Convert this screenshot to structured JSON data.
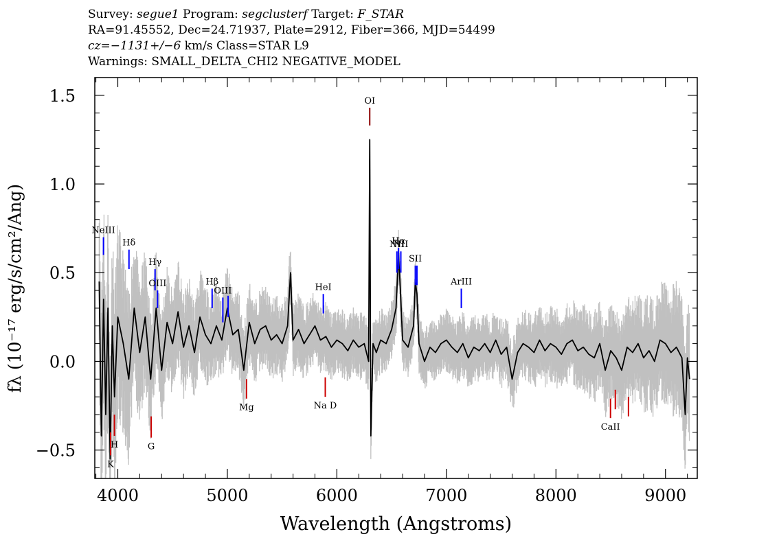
{
  "header": {
    "line1": {
      "survey_label": "Survey: ",
      "survey": "segue1",
      "program_label": " Program: ",
      "program": "segclusterf",
      "target_label": " Target: ",
      "target": "F_STAR"
    },
    "line2": "RA=91.45552, Dec=24.71937, Plate=2912, Fiber=366, MJD=54499",
    "line3": {
      "cz": "cz=−1131+/−6",
      "rest": " km/s Class=STAR L9"
    },
    "line4": "Warnings: SMALL_DELTA_CHI2 NEGATIVE_MODEL"
  },
  "chart_data": {
    "type": "line",
    "xlabel": "Wavelength (Angstroms)",
    "ylabel": "fλ (10⁻¹⁷ erg/s/cm²/Ang)",
    "xlim": [
      3790,
      9290
    ],
    "ylim": [
      -0.66,
      1.6
    ],
    "x_ticks": [
      4000,
      5000,
      6000,
      7000,
      8000,
      9000
    ],
    "x_tick_labels": [
      "4000",
      "5000",
      "6000",
      "7000",
      "8000",
      "9000"
    ],
    "y_ticks": [
      -0.5,
      0.0,
      0.5,
      1.0,
      1.5
    ],
    "y_tick_labels": [
      "−0.5",
      "0.0",
      "0.5",
      "1.0",
      "1.5"
    ],
    "grid": false,
    "colors": {
      "flux": "#000000",
      "error": "#c0c0c0",
      "emission": "#0000ff",
      "absorption": "#cc0000",
      "sky": "#8b0000"
    },
    "series": [
      {
        "role": "flux",
        "x": [
          3830,
          3850,
          3870,
          3890,
          3910,
          3930,
          3950,
          3970,
          4000,
          4050,
          4100,
          4150,
          4200,
          4250,
          4300,
          4350,
          4400,
          4450,
          4500,
          4550,
          4600,
          4650,
          4700,
          4750,
          4800,
          4850,
          4900,
          4950,
          5000,
          5050,
          5100,
          5150,
          5200,
          5250,
          5300,
          5350,
          5400,
          5450,
          5500,
          5550,
          5577,
          5600,
          5650,
          5700,
          5750,
          5800,
          5850,
          5900,
          5950,
          6000,
          6050,
          6100,
          6150,
          6200,
          6250,
          6290,
          6300,
          6310,
          6330,
          6360,
          6400,
          6450,
          6500,
          6540,
          6563,
          6580,
          6600,
          6650,
          6700,
          6716,
          6731,
          6750,
          6800,
          6850,
          6900,
          6950,
          7000,
          7050,
          7100,
          7150,
          7200,
          7250,
          7300,
          7350,
          7400,
          7450,
          7500,
          7550,
          7600,
          7650,
          7700,
          7750,
          7800,
          7850,
          7900,
          7950,
          8000,
          8050,
          8100,
          8150,
          8200,
          8250,
          8300,
          8350,
          8400,
          8450,
          8500,
          8550,
          8600,
          8650,
          8700,
          8750,
          8800,
          8850,
          8900,
          8950,
          9000,
          9050,
          9100,
          9150,
          9180,
          9200,
          9220
        ],
        "y": [
          0.45,
          -0.42,
          0.35,
          -0.3,
          0.3,
          -0.55,
          0.2,
          -0.2,
          0.25,
          0.1,
          -0.1,
          0.3,
          0.05,
          0.25,
          -0.1,
          0.3,
          -0.05,
          0.22,
          0.1,
          0.28,
          0.08,
          0.2,
          0.05,
          0.25,
          0.15,
          0.1,
          0.2,
          0.12,
          0.3,
          0.15,
          0.18,
          -0.05,
          0.22,
          0.1,
          0.18,
          0.2,
          0.12,
          0.15,
          0.1,
          0.2,
          0.5,
          0.12,
          0.18,
          0.1,
          0.15,
          0.2,
          0.12,
          0.14,
          0.08,
          0.12,
          0.1,
          0.06,
          0.12,
          0.08,
          0.1,
          0.0,
          1.25,
          -0.42,
          0.1,
          0.05,
          0.12,
          0.1,
          0.18,
          0.3,
          0.6,
          0.4,
          0.12,
          0.08,
          0.2,
          0.45,
          0.38,
          0.1,
          0.0,
          0.08,
          0.05,
          0.1,
          0.12,
          0.08,
          0.05,
          0.1,
          0.02,
          0.08,
          0.06,
          0.1,
          0.05,
          0.12,
          0.04,
          0.08,
          -0.1,
          0.05,
          0.1,
          0.08,
          0.05,
          0.12,
          0.06,
          0.1,
          0.08,
          0.04,
          0.1,
          0.12,
          0.06,
          0.08,
          0.04,
          0.02,
          0.1,
          -0.05,
          0.06,
          0.02,
          -0.05,
          0.08,
          0.05,
          0.1,
          0.02,
          0.06,
          0.0,
          0.12,
          0.1,
          0.05,
          0.08,
          0.02,
          -0.3,
          0.02,
          -0.1
        ]
      },
      {
        "role": "error",
        "x": [
          3830,
          3900,
          4000,
          4200,
          4500,
          5000,
          5500,
          6000,
          6500,
          7000,
          7500,
          8000,
          8500,
          9000,
          9220
        ],
        "y": [
          0.55,
          0.5,
          0.4,
          0.3,
          0.22,
          0.18,
          0.16,
          0.14,
          0.13,
          0.13,
          0.14,
          0.16,
          0.2,
          0.25,
          0.3
        ]
      }
    ],
    "annotations": [
      {
        "label": "NeIII",
        "x": 3869,
        "y_top": 0.7,
        "y_bottom": 0.6,
        "kind": "emission"
      },
      {
        "label": "Hδ",
        "x": 4102,
        "y_top": 0.63,
        "y_bottom": 0.52,
        "kind": "emission"
      },
      {
        "label": "Hγ",
        "x": 4340,
        "y_top": 0.52,
        "y_bottom": 0.4,
        "kind": "emission"
      },
      {
        "label": "OIII",
        "x": 4363,
        "y_top": 0.4,
        "y_bottom": 0.3,
        "kind": "emission"
      },
      {
        "label": "Hβ",
        "x": 4861,
        "y_top": 0.41,
        "y_bottom": 0.3,
        "kind": "emission"
      },
      {
        "label": "OIII",
        "x": 4959,
        "y_top": 0.36,
        "y_bottom": 0.22,
        "kind": "emission"
      },
      {
        "label": "",
        "x": 5007,
        "y_top": 0.37,
        "y_bottom": 0.25,
        "kind": "emission"
      },
      {
        "label": "HeI",
        "x": 5876,
        "y_top": 0.38,
        "y_bottom": 0.27,
        "kind": "emission"
      },
      {
        "label": "OI",
        "x": 6300,
        "y_top": 1.43,
        "y_bottom": 1.33,
        "kind": "sky"
      },
      {
        "label": "NII",
        "x": 6548,
        "y_top": 0.62,
        "y_bottom": 0.5,
        "kind": "emission"
      },
      {
        "label": "Hα",
        "x": 6563,
        "y_top": 0.64,
        "y_bottom": 0.52,
        "kind": "emission"
      },
      {
        "label": "NII",
        "x": 6584,
        "y_top": 0.62,
        "y_bottom": 0.5,
        "kind": "emission"
      },
      {
        "label": "SII",
        "x": 6716,
        "y_top": 0.54,
        "y_bottom": 0.43,
        "kind": "emission"
      },
      {
        "label": "",
        "x": 6731,
        "y_top": 0.54,
        "y_bottom": 0.43,
        "kind": "emission"
      },
      {
        "label": "ArIII",
        "x": 7136,
        "y_top": 0.41,
        "y_bottom": 0.3,
        "kind": "emission"
      },
      {
        "label": "K",
        "x": 3934,
        "y_top": -0.4,
        "y_bottom": -0.53,
        "kind": "absorption"
      },
      {
        "label": "H",
        "x": 3969,
        "y_top": -0.3,
        "y_bottom": -0.42,
        "kind": "absorption"
      },
      {
        "label": "G",
        "x": 4305,
        "y_top": -0.31,
        "y_bottom": -0.43,
        "kind": "absorption"
      },
      {
        "label": "Mg",
        "x": 5175,
        "y_top": -0.1,
        "y_bottom": -0.21,
        "kind": "absorption"
      },
      {
        "label": "Na  D",
        "x": 5894,
        "y_top": -0.09,
        "y_bottom": -0.2,
        "kind": "absorption"
      },
      {
        "label": "CaII",
        "x": 8498,
        "y_top": -0.21,
        "y_bottom": -0.32,
        "kind": "absorption"
      },
      {
        "label": "",
        "x": 8542,
        "y_top": -0.16,
        "y_bottom": -0.27,
        "kind": "absorption"
      },
      {
        "label": "",
        "x": 8662,
        "y_top": -0.2,
        "y_bottom": -0.31,
        "kind": "absorption"
      }
    ]
  }
}
